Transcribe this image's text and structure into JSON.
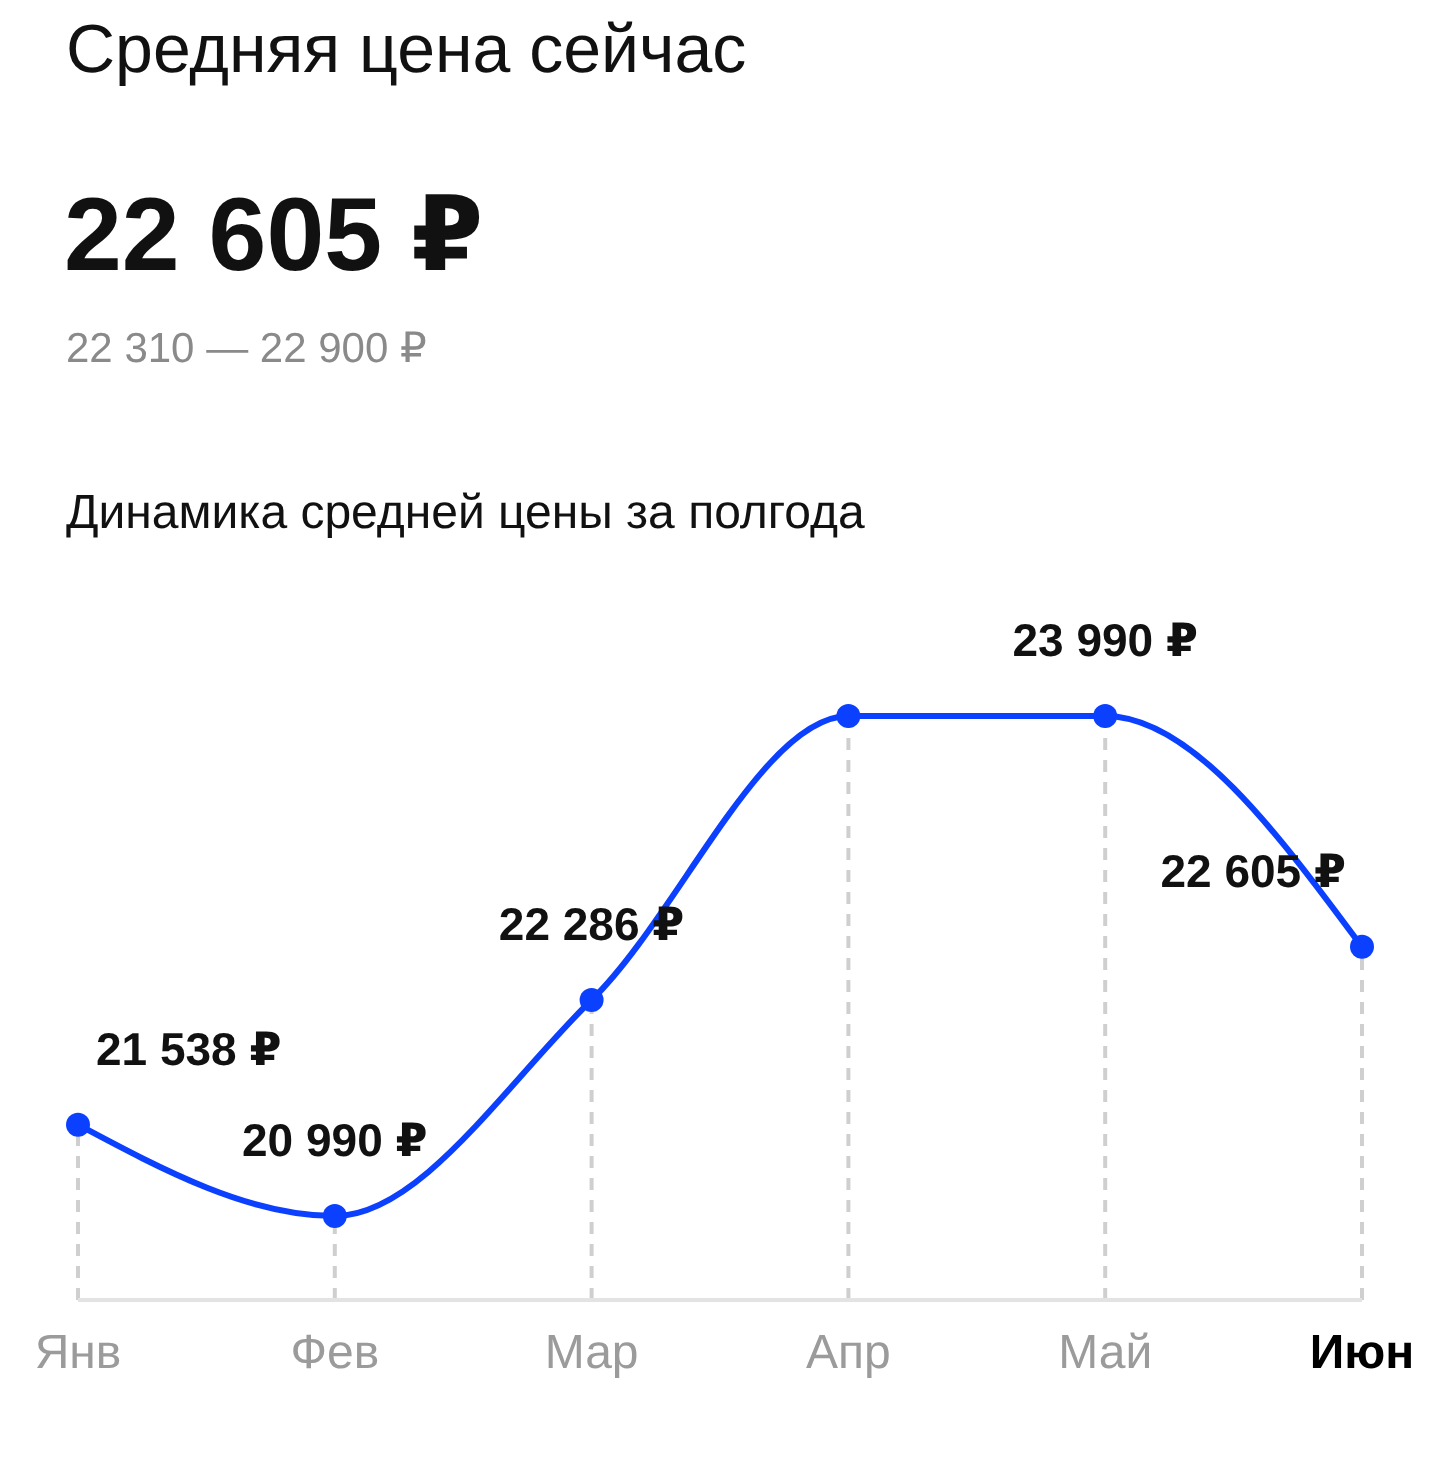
{
  "chart_data": {
    "type": "line",
    "title": "Средняя цена сейчас",
    "subtitle": "22 605 ₽",
    "annotations": [
      "22 310 — 22 900 ₽",
      "Динамика средней цены за полгода"
    ],
    "categories": [
      "Янв",
      "Фев",
      "Мар",
      "Апр",
      "Май",
      "Июн"
    ],
    "series": [
      {
        "color": "#0c40ff",
        "values": [
          21538,
          20990,
          22286,
          23990,
          23990,
          22605
        ],
        "value_labels": [
          "21 538 ₽",
          "20 990 ₽",
          "22 286 ₽",
          null,
          "23 990 ₽",
          "22 605 ₽"
        ]
      }
    ],
    "marker": "circle",
    "line_style": "solid",
    "grid": "x"
  }
}
